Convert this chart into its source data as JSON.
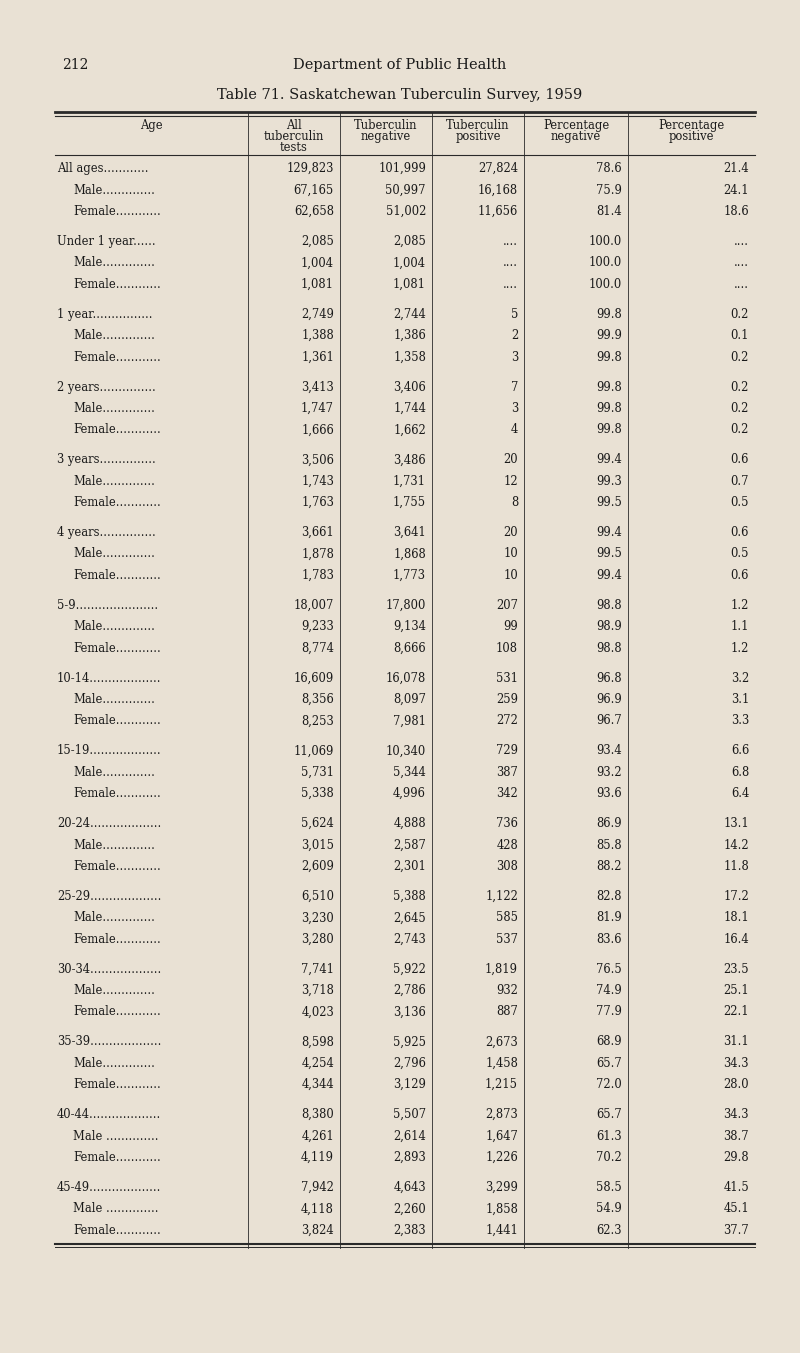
{
  "page_number": "212",
  "header_text": "Department of Public Health",
  "title": "Table 71. Saskatchewan Tuberculin Survey, 1959",
  "bg_color": "#e9e1d4",
  "col_headers_line1": [
    "Age",
    "All",
    "Tuberculin",
    "Tuberculin",
    "Percentage",
    "Percentage"
  ],
  "col_headers_line2": [
    "",
    "tuberculin",
    "negative",
    "positive",
    "negative",
    "positive"
  ],
  "col_headers_line3": [
    "",
    "tests",
    "",
    "",
    "",
    ""
  ],
  "rows": [
    [
      "All ages............",
      "129,823",
      "101,999",
      "27,824",
      "78.6",
      "21.4"
    ],
    [
      "  Male..............",
      "67,165",
      "50,997",
      "16,168",
      "75.9",
      "24.1"
    ],
    [
      "  Female............",
      "62,658",
      "51,002",
      "11,656",
      "81.4",
      "18.6"
    ],
    [
      "",
      "",
      "",
      "",
      "",
      ""
    ],
    [
      "Under 1 year......",
      "2,085",
      "2,085",
      "....",
      "100.0",
      "...."
    ],
    [
      "  Male..............",
      "1,004",
      "1,004",
      "....",
      "100.0",
      "...."
    ],
    [
      "  Female............",
      "1,081",
      "1,081",
      "....",
      "100.0",
      "...."
    ],
    [
      "",
      "",
      "",
      "",
      "",
      ""
    ],
    [
      "1 year................",
      "2,749",
      "2,744",
      "5",
      "99.8",
      "0.2"
    ],
    [
      "  Male..............",
      "1,388",
      "1,386",
      "2",
      "99.9",
      "0.1"
    ],
    [
      "  Female............",
      "1,361",
      "1,358",
      "3",
      "99.8",
      "0.2"
    ],
    [
      "",
      "",
      "",
      "",
      "",
      ""
    ],
    [
      "2 years...............",
      "3,413",
      "3,406",
      "7",
      "99.8",
      "0.2"
    ],
    [
      "  Male..............",
      "1,747",
      "1,744",
      "3",
      "99.8",
      "0.2"
    ],
    [
      "  Female............",
      "1,666",
      "1,662",
      "4",
      "99.8",
      "0.2"
    ],
    [
      "",
      "",
      "",
      "",
      "",
      ""
    ],
    [
      "3 years...............",
      "3,506",
      "3,486",
      "20",
      "99.4",
      "0.6"
    ],
    [
      "  Male..............",
      "1,743",
      "1,731",
      "12",
      "99.3",
      "0.7"
    ],
    [
      "  Female............",
      "1,763",
      "1,755",
      "8",
      "99.5",
      "0.5"
    ],
    [
      "",
      "",
      "",
      "",
      "",
      ""
    ],
    [
      "4 years...............",
      "3,661",
      "3,641",
      "20",
      "99.4",
      "0.6"
    ],
    [
      "  Male..............",
      "1,878",
      "1,868",
      "10",
      "99.5",
      "0.5"
    ],
    [
      "  Female............",
      "1,783",
      "1,773",
      "10",
      "99.4",
      "0.6"
    ],
    [
      "",
      "",
      "",
      "",
      "",
      ""
    ],
    [
      "5-9......................",
      "18,007",
      "17,800",
      "207",
      "98.8",
      "1.2"
    ],
    [
      "  Male..............",
      "9,233",
      "9,134",
      "99",
      "98.9",
      "1.1"
    ],
    [
      "  Female............",
      "8,774",
      "8,666",
      "108",
      "98.8",
      "1.2"
    ],
    [
      "",
      "",
      "",
      "",
      "",
      ""
    ],
    [
      "10-14...................",
      "16,609",
      "16,078",
      "531",
      "96.8",
      "3.2"
    ],
    [
      "  Male..............",
      "8,356",
      "8,097",
      "259",
      "96.9",
      "3.1"
    ],
    [
      "  Female............",
      "8,253",
      "7,981",
      "272",
      "96.7",
      "3.3"
    ],
    [
      "",
      "",
      "",
      "",
      "",
      ""
    ],
    [
      "15-19...................",
      "11,069",
      "10,340",
      "729",
      "93.4",
      "6.6"
    ],
    [
      "  Male..............",
      "5,731",
      "5,344",
      "387",
      "93.2",
      "6.8"
    ],
    [
      "  Female............",
      "5,338",
      "4,996",
      "342",
      "93.6",
      "6.4"
    ],
    [
      "",
      "",
      "",
      "",
      "",
      ""
    ],
    [
      "20-24...................",
      "5,624",
      "4,888",
      "736",
      "86.9",
      "13.1"
    ],
    [
      "  Male..............",
      "3,015",
      "2,587",
      "428",
      "85.8",
      "14.2"
    ],
    [
      "  Female............",
      "2,609",
      "2,301",
      "308",
      "88.2",
      "11.8"
    ],
    [
      "",
      "",
      "",
      "",
      "",
      ""
    ],
    [
      "25-29...................",
      "6,510",
      "5,388",
      "1,122",
      "82.8",
      "17.2"
    ],
    [
      "  Male..............",
      "3,230",
      "2,645",
      "585",
      "81.9",
      "18.1"
    ],
    [
      "  Female............",
      "3,280",
      "2,743",
      "537",
      "83.6",
      "16.4"
    ],
    [
      "",
      "",
      "",
      "",
      "",
      ""
    ],
    [
      "30-34...................",
      "7,741",
      "5,922",
      "1,819",
      "76.5",
      "23.5"
    ],
    [
      "  Male..............",
      "3,718",
      "2,786",
      "932",
      "74.9",
      "25.1"
    ],
    [
      "  Female............",
      "4,023",
      "3,136",
      "887",
      "77.9",
      "22.1"
    ],
    [
      "",
      "",
      "",
      "",
      "",
      ""
    ],
    [
      "35-39...................",
      "8,598",
      "5,925",
      "2,673",
      "68.9",
      "31.1"
    ],
    [
      "  Male..............",
      "4,254",
      "2,796",
      "1,458",
      "65.7",
      "34.3"
    ],
    [
      "  Female............",
      "4,344",
      "3,129",
      "1,215",
      "72.0",
      "28.0"
    ],
    [
      "",
      "",
      "",
      "",
      "",
      ""
    ],
    [
      "40-44...................",
      "8,380",
      "5,507",
      "2,873",
      "65.7",
      "34.3"
    ],
    [
      "  Male ..............",
      "4,261",
      "2,614",
      "1,647",
      "61.3",
      "38.7"
    ],
    [
      "  Female............",
      "4,119",
      "2,893",
      "1,226",
      "70.2",
      "29.8"
    ],
    [
      "",
      "",
      "",
      "",
      "",
      ""
    ],
    [
      "45-49...................",
      "7,942",
      "4,643",
      "3,299",
      "58.5",
      "41.5"
    ],
    [
      "  Male ..............",
      "4,118",
      "2,260",
      "1,858",
      "54.9",
      "45.1"
    ],
    [
      "  Female............",
      "3,824",
      "2,383",
      "1,441",
      "62.3",
      "37.7"
    ]
  ],
  "font_size": 8.3,
  "header_font_size": 8.3,
  "line_color": "#2a2a2a",
  "text_color": "#1a1a1a"
}
